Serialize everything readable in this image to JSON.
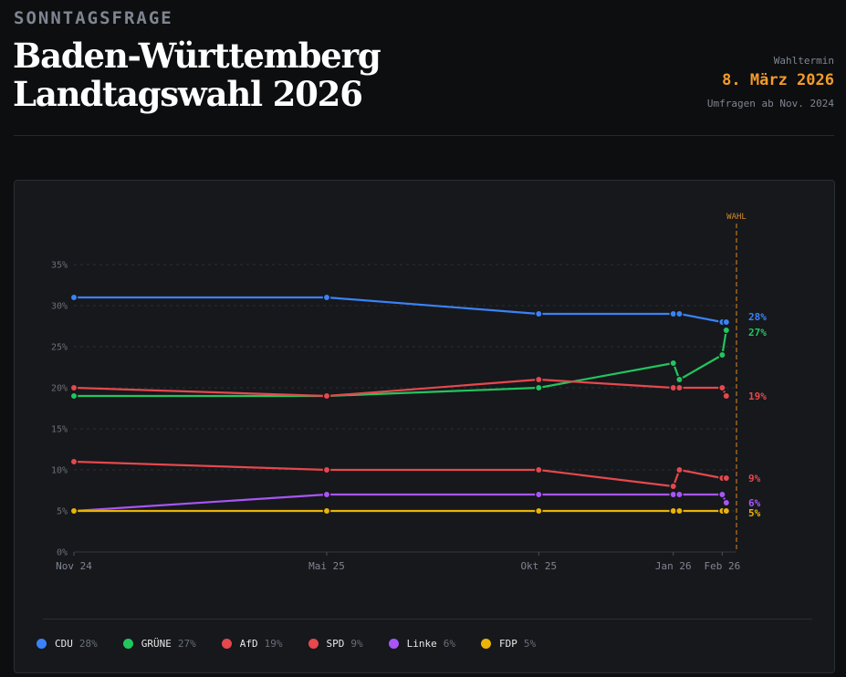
{
  "header": {
    "eyebrow": "SONNTAGSFRAGE",
    "title_line1": "Baden-Württemberg",
    "title_line2": "Landtagswahl 2026",
    "meta_label": "Wahltermin",
    "meta_date": "8. März 2026",
    "meta_since": "Umfragen ab Nov. 2024"
  },
  "chart_data": {
    "type": "line",
    "x_ticks": [
      {
        "label": "Nov 24",
        "x": 0
      },
      {
        "label": "Mai 25",
        "x": 6.2
      },
      {
        "label": "Okt 25",
        "x": 11.4
      },
      {
        "label": "Jan 26",
        "x": 14.7
      },
      {
        "label": "Feb 26",
        "x": 15.9
      }
    ],
    "xlim": [
      0,
      16.25
    ],
    "y_ticks": [
      "0%",
      "5%",
      "10%",
      "15%",
      "20%",
      "25%",
      "30%",
      "35%"
    ],
    "ylim": [
      0,
      35
    ],
    "grid": true,
    "election_marker": {
      "label": "WAHL",
      "x": 16.25
    },
    "series": [
      {
        "name": "CDU",
        "color": "#3b82f6",
        "end_label": "28%",
        "points": [
          [
            0,
            31
          ],
          [
            6.2,
            31
          ],
          [
            11.4,
            29
          ],
          [
            14.7,
            29
          ],
          [
            14.85,
            29
          ],
          [
            15.9,
            28
          ],
          [
            16.0,
            28
          ]
        ]
      },
      {
        "name": "GRÜNE",
        "color": "#22c55e",
        "end_label": "27%",
        "points": [
          [
            0,
            19
          ],
          [
            6.2,
            19
          ],
          [
            11.4,
            20
          ],
          [
            14.7,
            23
          ],
          [
            14.85,
            21
          ],
          [
            15.9,
            24
          ],
          [
            16.0,
            27
          ]
        ]
      },
      {
        "name": "AfD",
        "color": "#e5484d",
        "end_label": "19%",
        "points": [
          [
            0,
            20
          ],
          [
            6.2,
            19
          ],
          [
            11.4,
            21
          ],
          [
            14.7,
            20
          ],
          [
            14.85,
            20
          ],
          [
            15.9,
            20
          ],
          [
            16.0,
            19
          ]
        ]
      },
      {
        "name": "SPD",
        "color": "#e5484d",
        "end_label": "9%",
        "points": [
          [
            0,
            11
          ],
          [
            6.2,
            10
          ],
          [
            11.4,
            10
          ],
          [
            14.7,
            8
          ],
          [
            14.85,
            10
          ],
          [
            15.9,
            9
          ],
          [
            16.0,
            9
          ]
        ]
      },
      {
        "name": "Linke",
        "color": "#a855f7",
        "end_label": "6%",
        "points": [
          [
            0,
            5
          ],
          [
            6.2,
            7
          ],
          [
            11.4,
            7
          ],
          [
            14.7,
            7
          ],
          [
            14.85,
            7
          ],
          [
            15.9,
            7
          ],
          [
            16.0,
            6
          ]
        ]
      },
      {
        "name": "FDP",
        "color": "#eab308",
        "end_label": "5%",
        "points": [
          [
            0,
            5
          ],
          [
            6.2,
            5
          ],
          [
            11.4,
            5
          ],
          [
            14.7,
            5
          ],
          [
            14.85,
            5
          ],
          [
            15.9,
            5
          ],
          [
            16.0,
            5
          ]
        ]
      }
    ]
  },
  "legend": [
    {
      "name": "CDU",
      "value": "28%",
      "color": "#3b82f6"
    },
    {
      "name": "GRÜNE",
      "value": "27%",
      "color": "#22c55e"
    },
    {
      "name": "AfD",
      "value": "19%",
      "color": "#e5484d"
    },
    {
      "name": "SPD",
      "value": "9%",
      "color": "#e5484d"
    },
    {
      "name": "Linke",
      "value": "6%",
      "color": "#a855f7"
    },
    {
      "name": "FDP",
      "value": "5%",
      "color": "#eab308"
    }
  ]
}
